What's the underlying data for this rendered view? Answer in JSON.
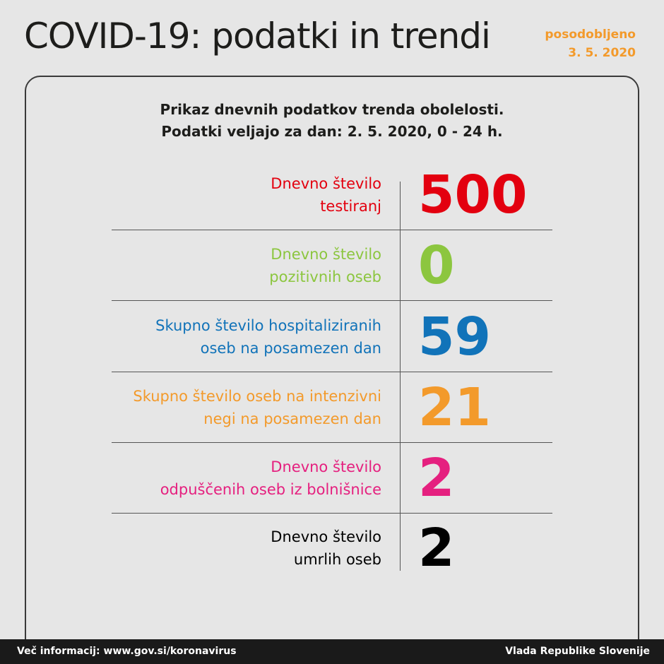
{
  "header": {
    "title": "COVID-19: podatki in trendi",
    "updated_label": "posodobljeno",
    "updated_date": "3. 5. 2020"
  },
  "card": {
    "subtitle_line1": "Prikaz dnevnih podatkov trenda obolelosti.",
    "subtitle_line2": "Podatki veljajo za dan: 2. 5. 2020, 0 - 24 h.",
    "rows": [
      {
        "label1": "Dnevno število",
        "label2": "testiranj",
        "value": "500",
        "color": "#e3000f"
      },
      {
        "label1": "Dnevno število",
        "label2": "pozitivnih oseb",
        "value": "0",
        "color": "#8cc63f"
      },
      {
        "label1": "Skupno število hospitaliziranih",
        "label2": "oseb na posamezen dan",
        "value": "59",
        "color": "#1173b9"
      },
      {
        "label1": "Skupno število oseb na intenzivni",
        "label2": "negi na posamezen dan",
        "value": "21",
        "color": "#f39a2b"
      },
      {
        "label1": "Dnevno število",
        "label2": "odpuščenih oseb iz bolnišnice",
        "value": "2",
        "color": "#e5207f"
      },
      {
        "label1": "Dnevno število",
        "label2": "umrlih oseb",
        "value": "2",
        "color": "#000000"
      }
    ]
  },
  "footer": {
    "info": "Več informacij: www.gov.si/koronavirus",
    "org": "Vlada Republike Slovenije"
  }
}
